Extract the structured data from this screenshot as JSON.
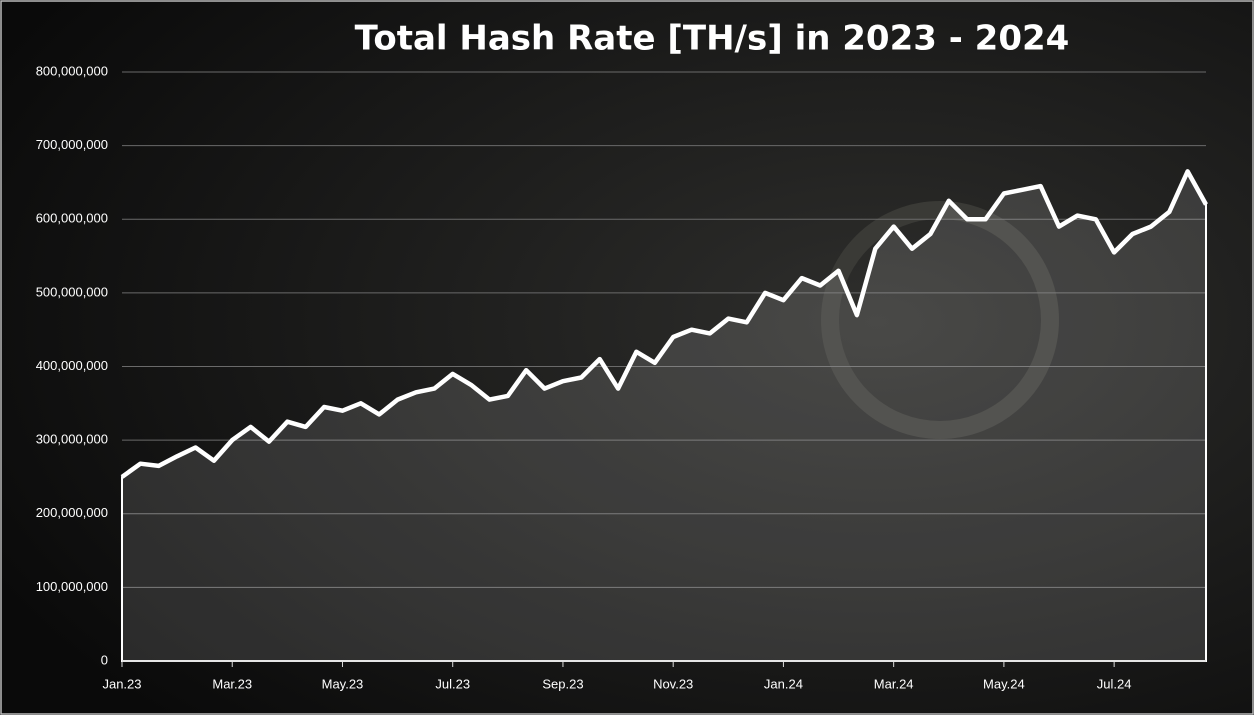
{
  "chart_data": {
    "type": "area",
    "title": "Total Hash Rate [TH/s] in 2023 - 2024",
    "categories": [
      "Jan.23",
      null,
      null,
      null,
      null,
      null,
      "Mar.23",
      null,
      null,
      null,
      null,
      null,
      "May.23",
      null,
      null,
      null,
      null,
      null,
      "Jul.23",
      null,
      null,
      null,
      null,
      null,
      "Sep.23",
      null,
      null,
      null,
      null,
      null,
      "Nov.23",
      null,
      null,
      null,
      null,
      null,
      "Jan.24",
      null,
      null,
      null,
      null,
      null,
      "Mar.24",
      null,
      null,
      null,
      null,
      null,
      "May.24",
      null,
      null,
      null,
      null,
      null,
      "Jul.24",
      null,
      null,
      null,
      null,
      null
    ],
    "series": [
      {
        "name": "Total Hash Rate",
        "color": "#ffffff",
        "values": [
          250000000,
          268000000,
          265000000,
          278000000,
          290000000,
          272000000,
          300000000,
          318000000,
          298000000,
          325000000,
          318000000,
          345000000,
          340000000,
          350000000,
          335000000,
          355000000,
          365000000,
          370000000,
          390000000,
          375000000,
          355000000,
          360000000,
          395000000,
          370000000,
          380000000,
          385000000,
          410000000,
          370000000,
          420000000,
          405000000,
          440000000,
          450000000,
          445000000,
          465000000,
          460000000,
          500000000,
          490000000,
          520000000,
          510000000,
          530000000,
          470000000,
          560000000,
          590000000,
          560000000,
          580000000,
          625000000,
          600000000,
          600000000,
          635000000,
          640000000,
          645000000,
          590000000,
          605000000,
          600000000,
          555000000,
          580000000,
          590000000,
          610000000,
          665000000,
          620000000
        ]
      }
    ],
    "ylim": [
      0,
      800000000
    ],
    "yticks": [
      0,
      {
        "value": 100000000,
        "label": "100,000,000"
      },
      {
        "value": 200000000,
        "label": "200,000,000"
      },
      {
        "value": 300000000,
        "label": "300,000,000"
      },
      {
        "value": 400000000,
        "label": "400,000,000"
      },
      {
        "value": 500000000,
        "label": "500,000,000"
      },
      {
        "value": 600000000,
        "label": "600,000,000"
      },
      {
        "value": 700000000,
        "label": "700,000,000"
      },
      {
        "value": 800000000,
        "label": "800,000,000"
      }
    ],
    "grid": true
  }
}
